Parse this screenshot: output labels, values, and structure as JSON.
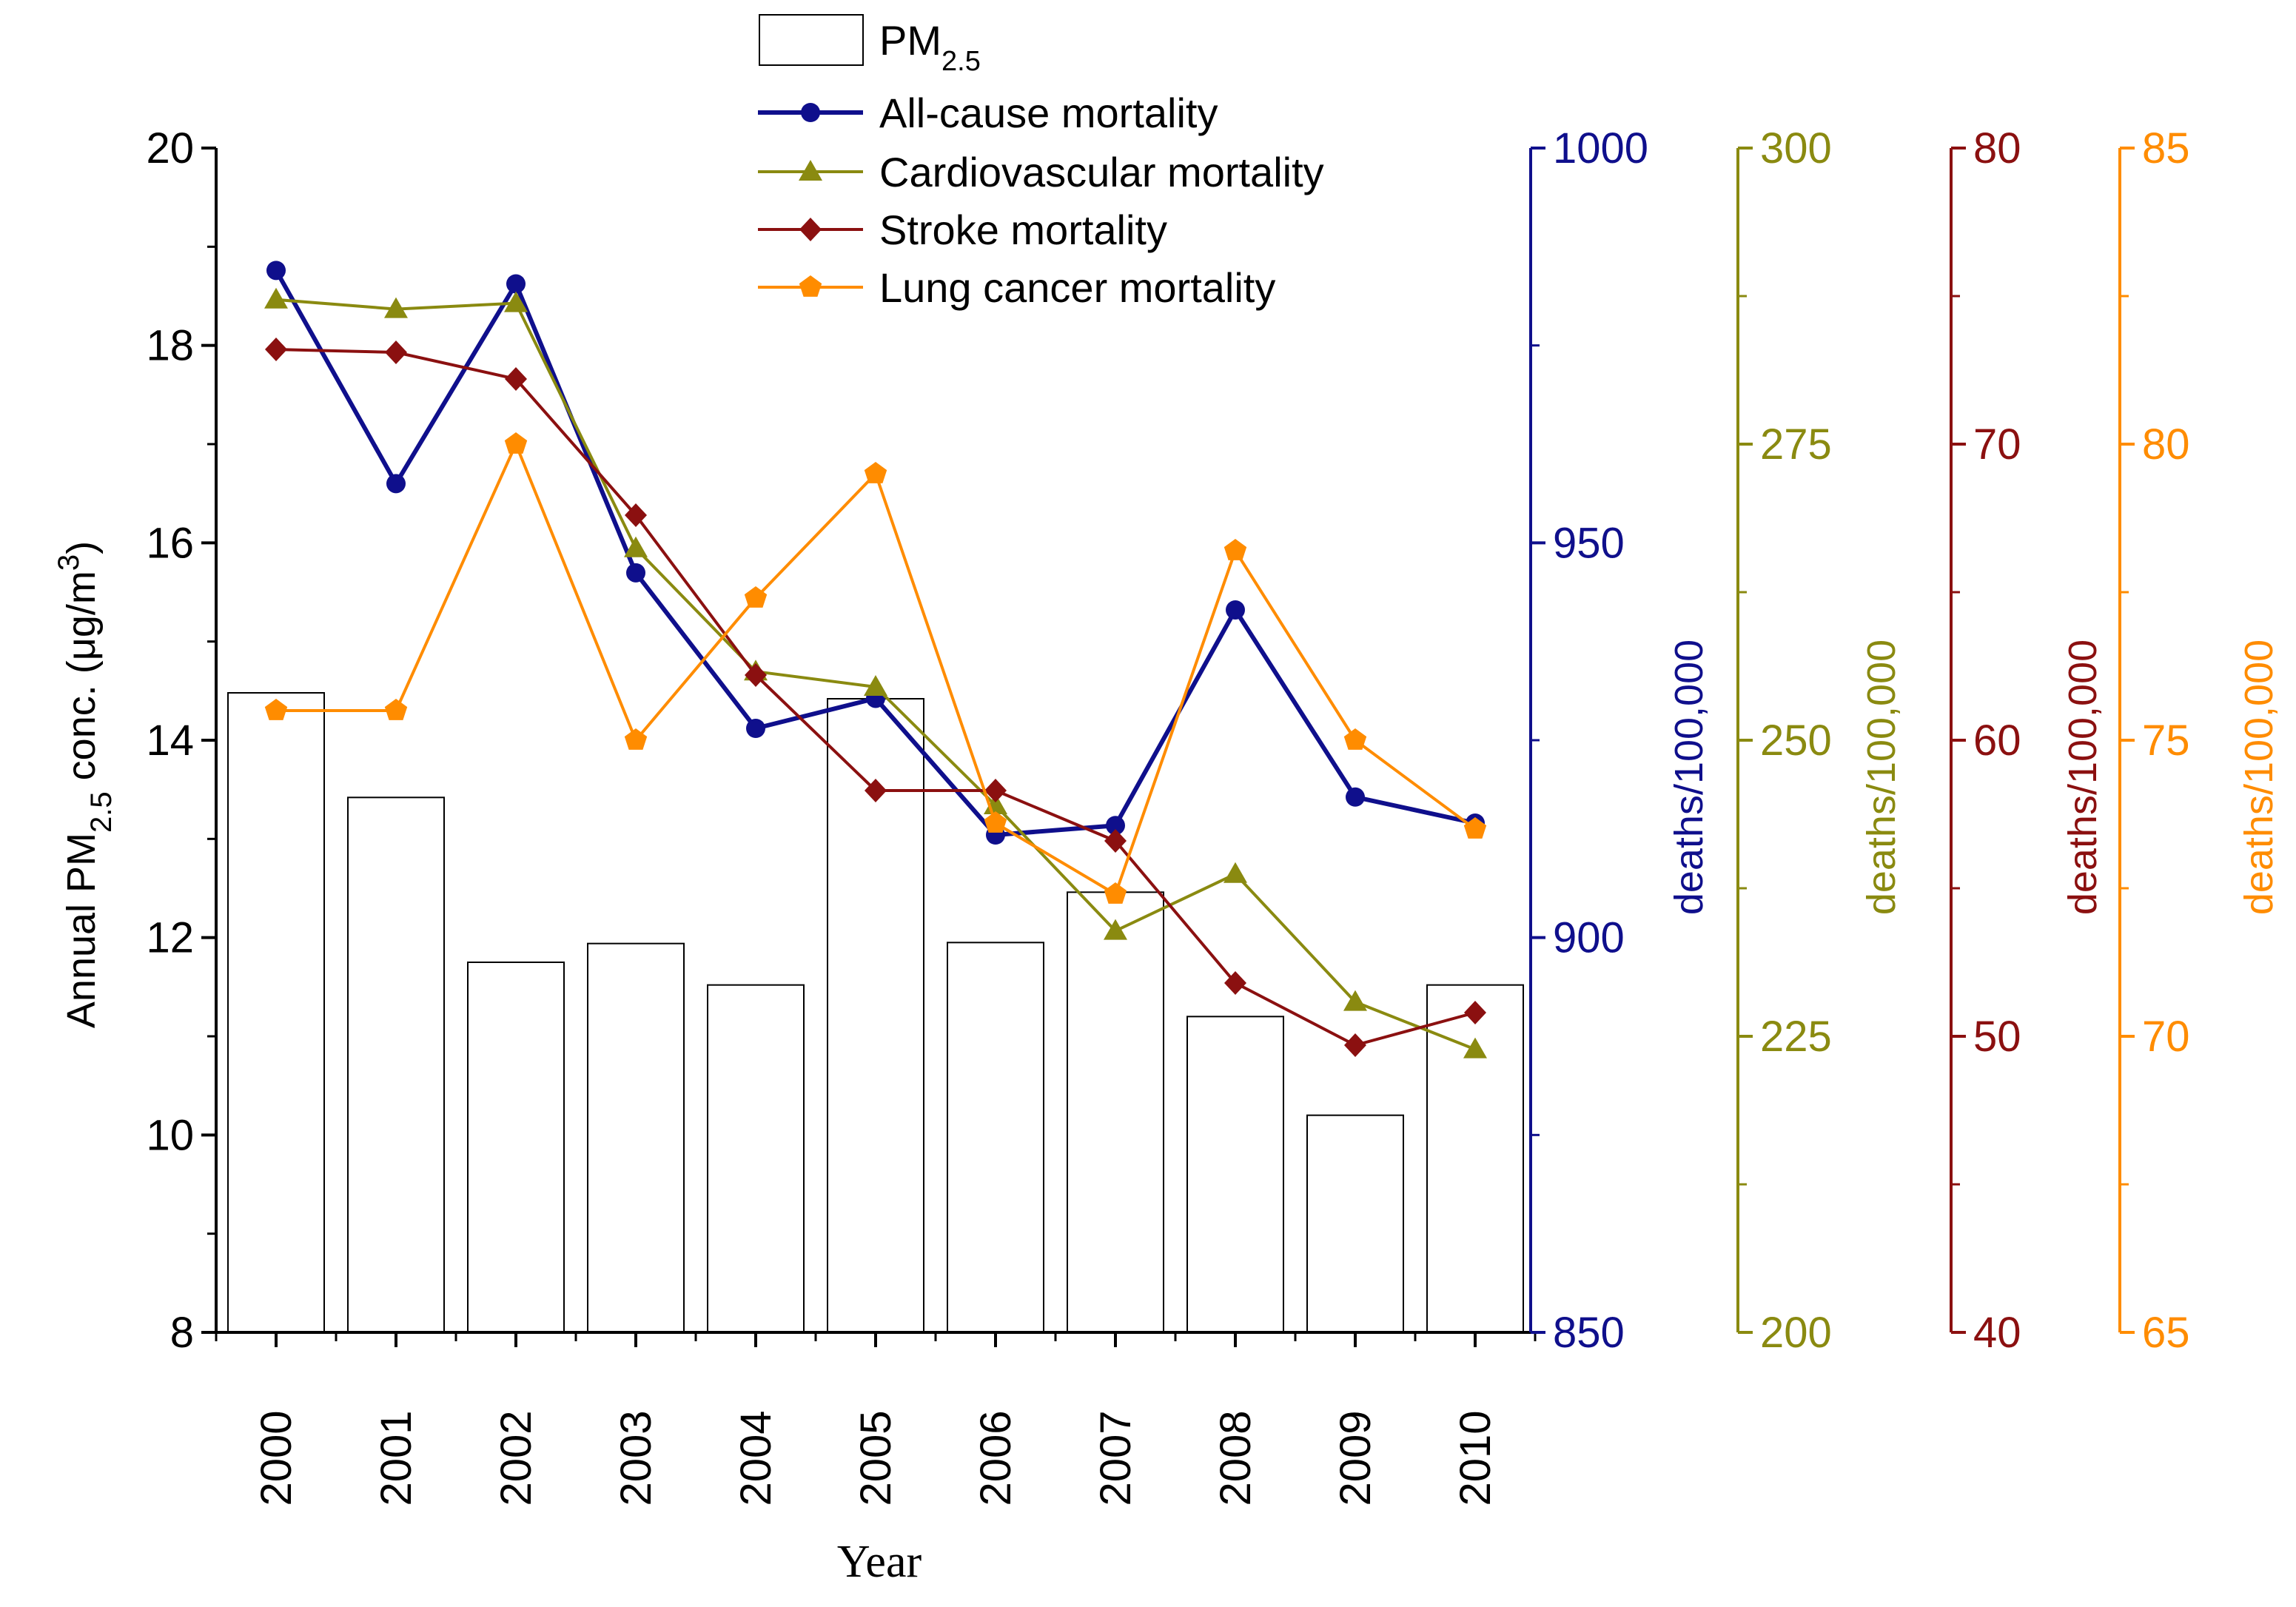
{
  "chart_data": {
    "type": "bar+line",
    "categories": [
      "2000",
      "2001",
      "2002",
      "2003",
      "2004",
      "2005",
      "2006",
      "2007",
      "2008",
      "2009",
      "2010"
    ],
    "xlabel": "Year",
    "bars": {
      "name": "PM",
      "name_sub": "2.5",
      "axis": "left",
      "values": [
        14.48,
        13.42,
        11.75,
        11.94,
        11.52,
        14.42,
        11.95,
        12.46,
        11.2,
        10.2,
        11.52
      ]
    },
    "left_axis": {
      "label_parts": [
        "Annual PM",
        "2.5",
        " conc. (μg/m",
        "3",
        ")"
      ],
      "range": [
        8,
        20
      ],
      "ticks": [
        8,
        10,
        12,
        14,
        16,
        18,
        20
      ],
      "color": "#000000"
    },
    "series": [
      {
        "name": "All-cause mortality",
        "color": "#0f0f8c",
        "marker": "circle",
        "axis_label": "deaths/100,000",
        "range": [
          850,
          1000
        ],
        "ticks": [
          850,
          900,
          950,
          1000
        ],
        "values": [
          984.5,
          957.5,
          982.8,
          946.2,
          926.5,
          930.3,
          913.0,
          914.2,
          941.5,
          917.8,
          914.5
        ]
      },
      {
        "name": "Cardiovascular mortality",
        "color": "#8a8a10",
        "marker": "triangle",
        "axis_label": "deaths/100,000",
        "range": [
          200,
          300
        ],
        "ticks": [
          200,
          225,
          250,
          275,
          300
        ],
        "values": [
          287.2,
          286.4,
          286.9,
          266.2,
          255.8,
          254.5,
          244.5,
          233.9,
          238.7,
          227.9,
          223.9
        ]
      },
      {
        "name": "Stroke mortality",
        "color": "#8b1010",
        "marker": "diamond",
        "axis_label": "deaths/100,000",
        "range": [
          40,
          80
        ],
        "ticks": [
          40,
          50,
          60,
          70,
          80
        ],
        "values": [
          73.2,
          73.1,
          72.2,
          67.6,
          62.2,
          58.3,
          58.3,
          56.6,
          51.8,
          49.7,
          50.8
        ]
      },
      {
        "name": "Lung cancer mortality",
        "color": "#ff8c00",
        "marker": "pentagon",
        "axis_label": "deaths/100,000",
        "range": [
          65,
          85
        ],
        "ticks": [
          65,
          70,
          75,
          80,
          85
        ],
        "values": [
          75.5,
          75.5,
          80.0,
          75.0,
          77.4,
          79.5,
          73.6,
          72.4,
          78.2,
          75.0,
          73.5
        ]
      }
    ]
  }
}
